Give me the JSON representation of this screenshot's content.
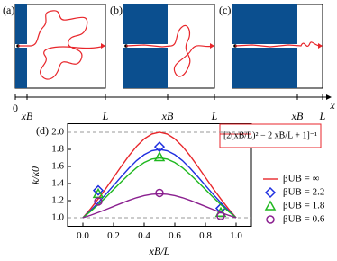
{
  "panels": [
    {
      "label": "(a)"
    },
    {
      "label": "(b)"
    },
    {
      "label": "(c)"
    }
  ],
  "position_axis": {
    "origin": "0",
    "barrier": "xB",
    "end": "L",
    "variable": "x"
  },
  "chart_data": {
    "type": "line",
    "panel_label": "(d)",
    "xlabel": "xB/L",
    "ylabel": "k/k0",
    "annotation": "[2(xB/L)² − 2 xB/L + 1]⁻¹",
    "x": [
      0,
      0.05,
      0.1,
      0.15,
      0.2,
      0.25,
      0.3,
      0.35,
      0.4,
      0.45,
      0.5,
      0.55,
      0.6,
      0.65,
      0.7,
      0.75,
      0.8,
      0.85,
      0.9,
      0.95,
      1
    ],
    "xlim": [
      -0.1,
      1.1
    ],
    "ylim": [
      0.9,
      2.1
    ],
    "xticks": [
      {
        "value": 0,
        "label": "0.0"
      },
      {
        "value": 0.2,
        "label": "0.2"
      },
      {
        "value": 0.4,
        "label": "0.4"
      },
      {
        "value": 0.6,
        "label": "0.6"
      },
      {
        "value": 0.8,
        "label": "0.8"
      },
      {
        "value": 1,
        "label": "1.0"
      }
    ],
    "yticks": [
      {
        "value": 1,
        "label": "1.0"
      },
      {
        "value": 1.2,
        "label": "1.2"
      },
      {
        "value": 1.4,
        "label": "1.4"
      },
      {
        "value": 1.6,
        "label": "1.6"
      },
      {
        "value": 1.8,
        "label": "1.8"
      },
      {
        "value": 2,
        "label": "2.0"
      }
    ],
    "reference_lines": [
      1,
      2
    ],
    "legend": "right",
    "series": [
      {
        "name": "βUB = ∞",
        "color": "#e8262b",
        "marker": "none",
        "values": [
          1,
          1.105,
          1.22,
          1.342,
          1.471,
          1.6,
          1.724,
          1.835,
          1.923,
          1.98,
          2,
          1.98,
          1.923,
          1.835,
          1.724,
          1.6,
          1.471,
          1.342,
          1.22,
          1.105,
          1
        ]
      },
      {
        "name": "βUB = 2.2",
        "color": "#1f2fe0",
        "marker": "diamond",
        "values": [
          1,
          1.084,
          1.176,
          1.274,
          1.377,
          1.48,
          1.579,
          1.668,
          1.738,
          1.784,
          1.8,
          1.784,
          1.738,
          1.668,
          1.579,
          1.48,
          1.377,
          1.274,
          1.176,
          1.084,
          1
        ],
        "marker_x": [
          0.1,
          0.5,
          0.9
        ],
        "marker_values": [
          1.32,
          1.83,
          1.11
        ]
      },
      {
        "name": "βUB = 1.8",
        "color": "#1fb81f",
        "marker": "triangle",
        "values": [
          1,
          1.074,
          1.154,
          1.239,
          1.33,
          1.42,
          1.507,
          1.585,
          1.646,
          1.686,
          1.7,
          1.686,
          1.646,
          1.585,
          1.507,
          1.42,
          1.33,
          1.239,
          1.154,
          1.074,
          1
        ],
        "marker_x": [
          0.1,
          0.5,
          0.9
        ],
        "marker_values": [
          1.28,
          1.71,
          1.06
        ]
      },
      {
        "name": "βUB = 0.6",
        "color": "#8a1f8f",
        "marker": "circle",
        "values": [
          1,
          1.029,
          1.062,
          1.096,
          1.132,
          1.168,
          1.203,
          1.234,
          1.258,
          1.274,
          1.28,
          1.274,
          1.258,
          1.234,
          1.203,
          1.168,
          1.132,
          1.096,
          1.062,
          1.029,
          1
        ],
        "marker_x": [
          0.1,
          0.5,
          0.9
        ],
        "marker_values": [
          1.19,
          1.29,
          1.02
        ]
      }
    ]
  }
}
